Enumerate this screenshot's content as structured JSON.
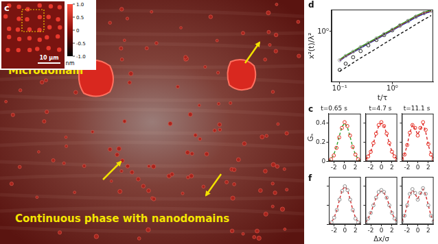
{
  "image_panel": {
    "panel_label": "c",
    "scale_bar": "10 μm",
    "colorbar": {
      "label": "nm",
      "range": [
        -1,
        1
      ],
      "ticks": [
        {
          "value": 1,
          "label": "1.0"
        },
        0.5,
        0,
        -0.5,
        {
          "value": -1,
          "label": "-1.0"
        }
      ]
    },
    "annotations": [
      "Microdomain",
      "Continuous phase with nanodomains"
    ]
  },
  "chart_data": [
    {
      "panel_label": "d",
      "type": "scatter",
      "log": true,
      "grid": false,
      "xlabel": "t/τ",
      "ylabel": "x²(t)/λ²",
      "x": [
        0.1,
        0.13,
        0.18,
        0.25,
        0.35,
        0.5,
        0.7,
        1,
        1.4,
        2,
        2.8,
        4,
        5.5
      ],
      "xlim": [
        0.07,
        6
      ],
      "ylim": [
        0.12,
        2.5
      ],
      "xticks": [
        {
          "value": 0.1,
          "label": "10⁻¹"
        },
        {
          "value": 1,
          "label": "10⁰"
        }
      ],
      "yticks": [
        {
          "value": 1,
          "label": "10⁰"
        }
      ],
      "series": [
        {
          "type": "scatter",
          "color": "#a6a6a6",
          "marker": "circle",
          "values": [
            0.3,
            0.36,
            0.43,
            0.52,
            0.62,
            0.75,
            0.9,
            1.08,
            1.3,
            1.55,
            1.85,
            2.15,
            2.4
          ]
        },
        {
          "type": "scatter",
          "color": "#222222",
          "marker": "circle",
          "values": [
            0.2,
            0.26,
            0.34,
            0.44,
            0.56,
            0.7,
            0.86,
            1.05,
            1.28,
            1.55,
            1.85,
            2.15,
            2.4
          ]
        },
        {
          "type": "line",
          "color": "#2ca02c",
          "line_style": "solid",
          "values": [
            0.31,
            0.37,
            0.44,
            0.53,
            0.63,
            0.76,
            0.91,
            1.1,
            1.33,
            1.6,
            1.92,
            2.25,
            2.45
          ]
        },
        {
          "type": "line",
          "color": "#d62728",
          "line_style": "solid",
          "values": [
            0.3,
            0.36,
            0.43,
            0.52,
            0.62,
            0.74,
            0.89,
            1.07,
            1.29,
            1.56,
            1.87,
            2.18,
            2.38
          ]
        },
        {
          "type": "line",
          "color": "#1f3fbf",
          "line_style": "solid",
          "values": [
            0.29,
            0.35,
            0.42,
            0.5,
            0.6,
            0.72,
            0.86,
            1.04,
            1.25,
            1.5,
            1.8,
            2.1,
            2.3
          ]
        },
        {
          "type": "line",
          "color": "#111111",
          "line_style": "solid",
          "values": [
            0.3,
            0.35,
            0.42,
            0.5,
            0.6,
            0.72,
            0.87,
            1.05,
            1.27,
            1.52,
            1.82,
            2.12,
            2.33
          ]
        },
        {
          "type": "line",
          "color": "#111111",
          "line_style": "dashed",
          "values": [
            0.19,
            0.22,
            0.27,
            0.33,
            0.4,
            0.49,
            0.6,
            0.74,
            0.9,
            1.1,
            1.34,
            1.65,
            1.95
          ]
        }
      ]
    },
    {
      "panel_label": "c",
      "type": "scatter",
      "title": "t=0.65 s",
      "ylabel": "Gₛ",
      "grid": false,
      "x": [
        -3,
        -2.5,
        -2,
        -1.5,
        -1,
        -0.5,
        0,
        0.5,
        1,
        1.5,
        2,
        2.5,
        3
      ],
      "xlim": [
        -3,
        3
      ],
      "ylim": [
        0,
        0.5
      ],
      "xticks": [
        -2,
        0,
        2
      ],
      "yticks": [
        0,
        0.2,
        0.4
      ],
      "series": [
        {
          "type": "scatter",
          "color": "#e8291c",
          "marker": "circle",
          "values": [
            0,
            0.02,
            0.06,
            0.14,
            0.25,
            0.35,
            0.41,
            0.37,
            0.27,
            0.15,
            0.07,
            0.02,
            0
          ]
        },
        {
          "type": "line",
          "color": "#2ca02c",
          "line_style": "dashed",
          "values": [
            0,
            0.02,
            0.07,
            0.15,
            0.26,
            0.36,
            0.4,
            0.36,
            0.26,
            0.15,
            0.07,
            0.02,
            0
          ]
        }
      ]
    },
    {
      "type": "scatter",
      "title": "t=4.7 s",
      "grid": false,
      "tick_labels": "x",
      "x": [
        -3,
        -2.5,
        -2,
        -1.5,
        -1,
        -0.5,
        0,
        0.5,
        1,
        1.5,
        2,
        2.5,
        3
      ],
      "xlim": [
        -3,
        3
      ],
      "ylim": [
        0,
        0.5
      ],
      "xticks": [
        -2,
        0,
        2
      ],
      "yticks": [
        0,
        0.2,
        0.4
      ],
      "series": [
        {
          "type": "scatter",
          "color": "#e8291c",
          "marker": "circle",
          "values": [
            0.02,
            0.05,
            0.1,
            0.19,
            0.29,
            0.38,
            0.41,
            0.37,
            0.29,
            0.19,
            0.1,
            0.05,
            0.01
          ]
        },
        {
          "type": "line",
          "color": "#d62728",
          "line_style": "dashed",
          "values": [
            0.02,
            0.05,
            0.1,
            0.19,
            0.29,
            0.37,
            0.4,
            0.37,
            0.29,
            0.19,
            0.1,
            0.05,
            0.02
          ]
        }
      ]
    },
    {
      "type": "scatter",
      "title": "t=11.1 s",
      "grid": false,
      "tick_labels": "x",
      "x": [
        -3,
        -2.5,
        -2,
        -1.5,
        -1,
        -0.5,
        0,
        0.5,
        1,
        1.5,
        2,
        2.5,
        3
      ],
      "xlim": [
        -3,
        3
      ],
      "ylim": [
        0,
        0.5
      ],
      "xticks": [
        -2,
        0,
        2
      ],
      "yticks": [
        0,
        0.2,
        0.4
      ],
      "series": [
        {
          "type": "scatter",
          "color": "#e8291c",
          "marker": "circle",
          "values": [
            0.02,
            0.07,
            0.17,
            0.3,
            0.38,
            0.35,
            0.27,
            0.35,
            0.41,
            0.33,
            0.18,
            0.07,
            0.02
          ]
        },
        {
          "type": "line",
          "color": "#d62728",
          "line_style": "dashed",
          "values": [
            0.02,
            0.07,
            0.17,
            0.3,
            0.38,
            0.34,
            0.28,
            0.34,
            0.39,
            0.31,
            0.17,
            0.07,
            0.02
          ]
        }
      ]
    },
    {
      "panel_label": "f",
      "type": "scatter",
      "grid": false,
      "tick_labels": "x",
      "x": [
        -3,
        -2.5,
        -2,
        -1.5,
        -1,
        -0.5,
        0,
        0.5,
        1,
        1.5,
        2,
        2.5,
        3
      ],
      "xlim": [
        -3,
        3
      ],
      "ylim": [
        0,
        0.5
      ],
      "xticks": [
        -2,
        0,
        2
      ],
      "yticks": [
        0,
        0.2,
        0.4
      ],
      "series": [
        {
          "type": "scatter",
          "color": "#8c8c8c",
          "marker": "circle",
          "values": [
            0,
            0.02,
            0.07,
            0.15,
            0.26,
            0.35,
            0.4,
            0.36,
            0.26,
            0.15,
            0.06,
            0.02,
            0
          ]
        },
        {
          "type": "line",
          "color": "#d62728",
          "line_style": "dashed",
          "values": [
            0,
            0.02,
            0.07,
            0.15,
            0.26,
            0.36,
            0.4,
            0.36,
            0.26,
            0.15,
            0.07,
            0.02,
            0
          ]
        }
      ]
    },
    {
      "type": "scatter",
      "xlabel": "Δx/σ",
      "grid": false,
      "tick_labels": "x",
      "x": [
        -3,
        -2.5,
        -2,
        -1.5,
        -1,
        -0.5,
        0,
        0.5,
        1,
        1.5,
        2,
        2.5,
        3
      ],
      "xlim": [
        -3,
        3
      ],
      "ylim": [
        0,
        0.5
      ],
      "xticks": [
        -2,
        0,
        2
      ],
      "yticks": [
        0,
        0.2,
        0.4
      ],
      "series": [
        {
          "type": "scatter",
          "color": "#8c8c8c",
          "marker": "circle",
          "values": [
            0.02,
            0.06,
            0.12,
            0.2,
            0.28,
            0.34,
            0.36,
            0.34,
            0.28,
            0.2,
            0.12,
            0.06,
            0.02
          ]
        },
        {
          "type": "line",
          "color": "#d62728",
          "line_style": "dashed",
          "values": [
            0.02,
            0.06,
            0.12,
            0.2,
            0.28,
            0.33,
            0.35,
            0.33,
            0.28,
            0.2,
            0.12,
            0.06,
            0.02
          ]
        }
      ]
    },
    {
      "type": "scatter",
      "grid": false,
      "tick_labels": "x",
      "x": [
        -3,
        -2.5,
        -2,
        -1.5,
        -1,
        -0.5,
        0,
        0.5,
        1,
        1.5,
        2,
        2.5,
        3
      ],
      "xlim": [
        -3,
        3
      ],
      "ylim": [
        0,
        0.5
      ],
      "xticks": [
        -2,
        0,
        2
      ],
      "yticks": [
        0,
        0.2,
        0.4
      ],
      "series": [
        {
          "type": "scatter",
          "color": "#8c8c8c",
          "marker": "circle",
          "values": [
            0.03,
            0.09,
            0.2,
            0.32,
            0.37,
            0.33,
            0.26,
            0.33,
            0.38,
            0.32,
            0.2,
            0.09,
            0.03
          ]
        },
        {
          "type": "line",
          "color": "#d62728",
          "line_style": "dashed",
          "values": [
            0.03,
            0.09,
            0.2,
            0.31,
            0.36,
            0.32,
            0.27,
            0.32,
            0.37,
            0.31,
            0.2,
            0.09,
            0.03
          ]
        }
      ]
    }
  ]
}
